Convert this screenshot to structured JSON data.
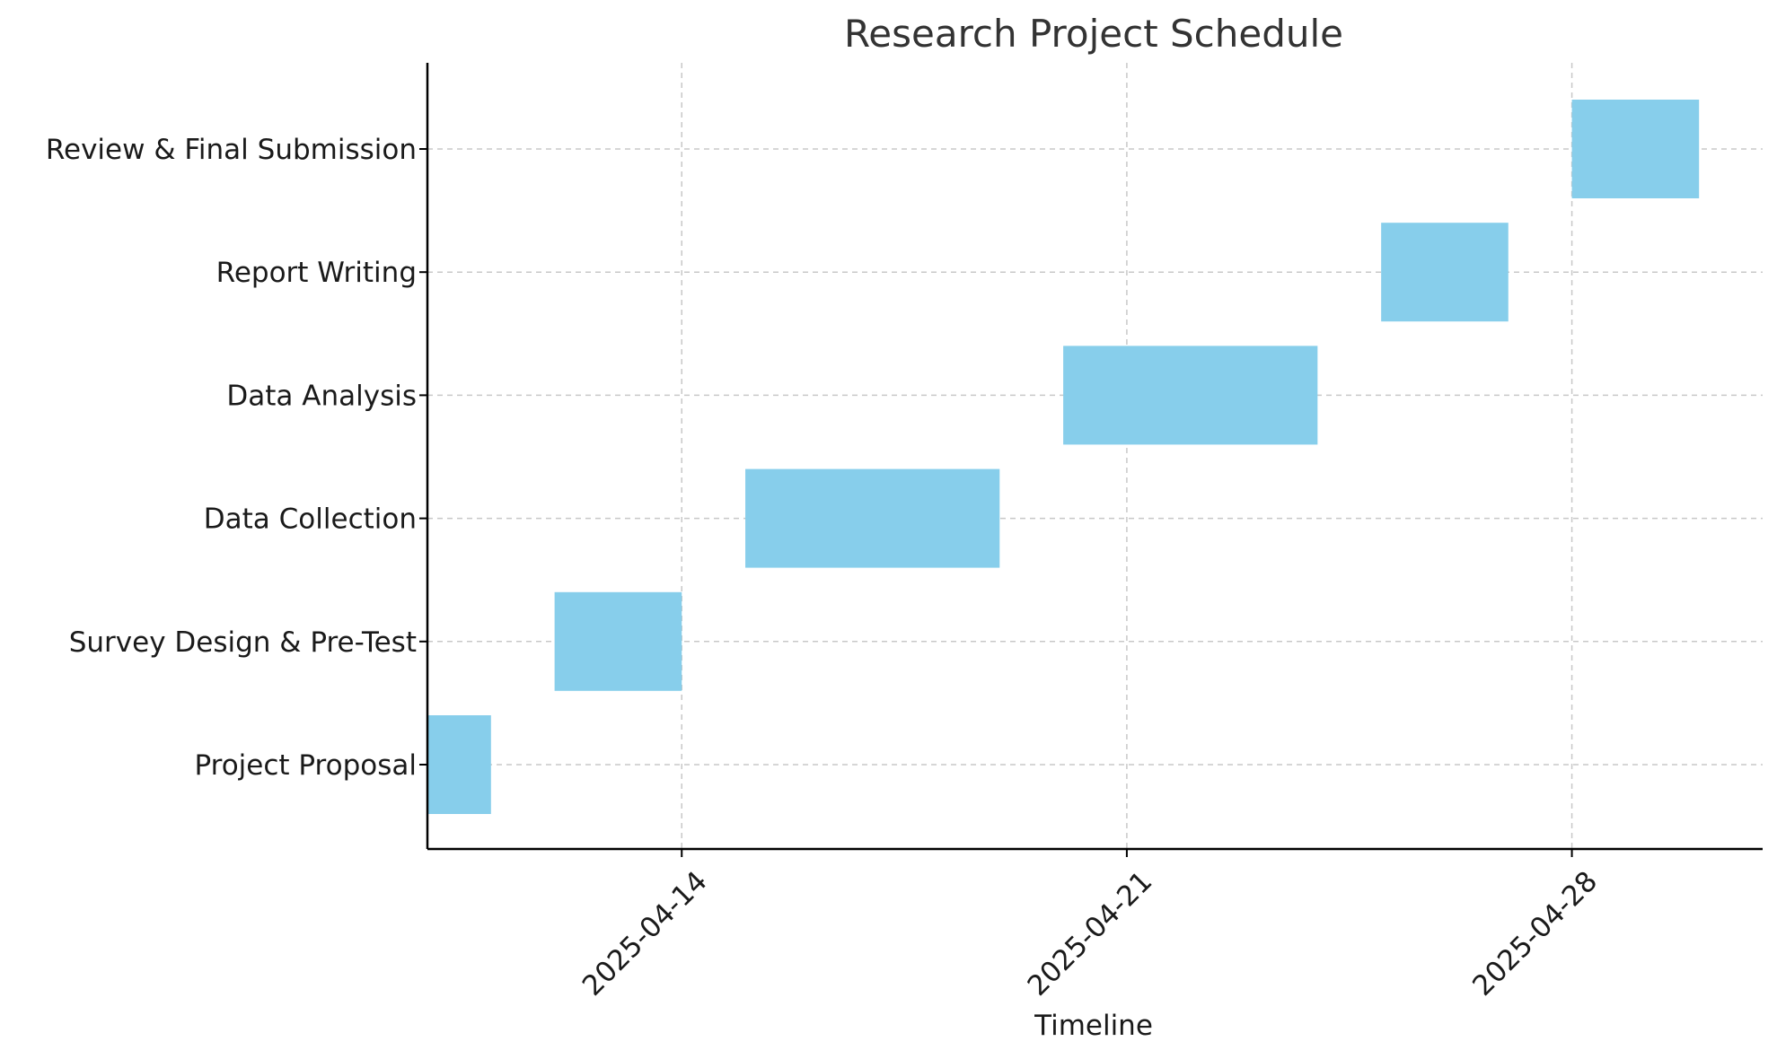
{
  "chart_data": {
    "type": "bar",
    "orientation": "horizontal",
    "title": "Research Project Schedule",
    "xlabel": "Timeline",
    "ylabel": "",
    "tasks": [
      {
        "name": "Project Proposal",
        "start": "2025-04-10",
        "end": "2025-04-11"
      },
      {
        "name": "Survey Design & Pre-Test",
        "start": "2025-04-12",
        "end": "2025-04-14"
      },
      {
        "name": "Data Collection",
        "start": "2025-04-15",
        "end": "2025-04-19"
      },
      {
        "name": "Data Analysis",
        "start": "2025-04-20",
        "end": "2025-04-24"
      },
      {
        "name": "Report Writing",
        "start": "2025-04-25",
        "end": "2025-04-27"
      },
      {
        "name": "Review & Final Submission",
        "start": "2025-04-28",
        "end": "2025-04-30"
      }
    ],
    "xticks": [
      "2025-04-14",
      "2025-04-21",
      "2025-04-28"
    ],
    "xlim": [
      "2025-04-10",
      "2025-05-01"
    ],
    "grid": true,
    "bar_color": "#87CEEB"
  }
}
